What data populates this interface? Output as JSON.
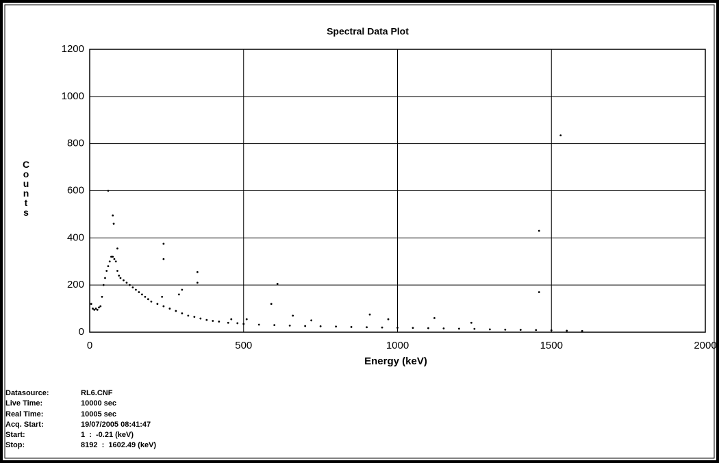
{
  "chart_data": {
    "type": "scatter",
    "title": "Spectral Data Plot",
    "x_label": "Energy (keV)",
    "y_label": "Counts",
    "color": "#000000",
    "grid": true,
    "xlim": [
      0,
      2000
    ],
    "xticks": [
      0,
      500,
      1000,
      1500,
      2000
    ],
    "ylim": [
      0,
      1200
    ],
    "yticks": [
      0,
      200,
      400,
      600,
      800,
      1000,
      1200
    ],
    "x": [
      5,
      10,
      15,
      20,
      25,
      30,
      35,
      40,
      45,
      50,
      55,
      60,
      65,
      70,
      75,
      80,
      85,
      90,
      95,
      100,
      110,
      120,
      130,
      140,
      150,
      160,
      170,
      180,
      190,
      200,
      220,
      240,
      260,
      280,
      300,
      320,
      340,
      360,
      380,
      400,
      420,
      450,
      480,
      500,
      550,
      600,
      650,
      700,
      750,
      800,
      850,
      900,
      950,
      1000,
      1050,
      1100,
      1150,
      1200,
      1250,
      1300,
      1350,
      1400,
      1450,
      1500,
      1550,
      1600,
      60,
      75,
      78,
      90,
      240,
      240,
      300,
      350,
      350,
      460,
      510,
      590,
      610,
      660,
      720,
      910,
      970,
      1120,
      1460,
      1460,
      1530,
      1240,
      290,
      235
    ],
    "values": [
      120,
      100,
      95,
      100,
      95,
      105,
      110,
      150,
      200,
      230,
      260,
      280,
      300,
      320,
      320,
      310,
      300,
      260,
      240,
      230,
      220,
      210,
      200,
      190,
      180,
      170,
      160,
      150,
      140,
      130,
      120,
      110,
      100,
      90,
      80,
      70,
      65,
      58,
      52,
      48,
      45,
      40,
      38,
      35,
      32,
      30,
      28,
      26,
      25,
      24,
      22,
      21,
      20,
      19,
      18,
      17,
      16,
      15,
      14,
      12,
      11,
      10,
      9,
      8,
      6,
      5,
      600,
      495,
      460,
      355,
      375,
      310,
      180,
      255,
      210,
      55,
      55,
      120,
      205,
      70,
      50,
      75,
      55,
      60,
      170,
      430,
      835,
      40,
      160,
      150
    ]
  },
  "info": {
    "rows": [
      {
        "label": "Datasource:",
        "value": "RL6.CNF"
      },
      {
        "label": "Live Time:",
        "value": "10000 sec"
      },
      {
        "label": "Real Time:",
        "value": "10005 sec"
      },
      {
        "label": "Acq. Start:",
        "value": "19/07/2005 08:41:47"
      },
      {
        "label": "Start:",
        "value": "1  :  -0.21 (keV)"
      },
      {
        "label": "Stop:",
        "value": "8192  :  1602.49 (keV)"
      }
    ]
  }
}
